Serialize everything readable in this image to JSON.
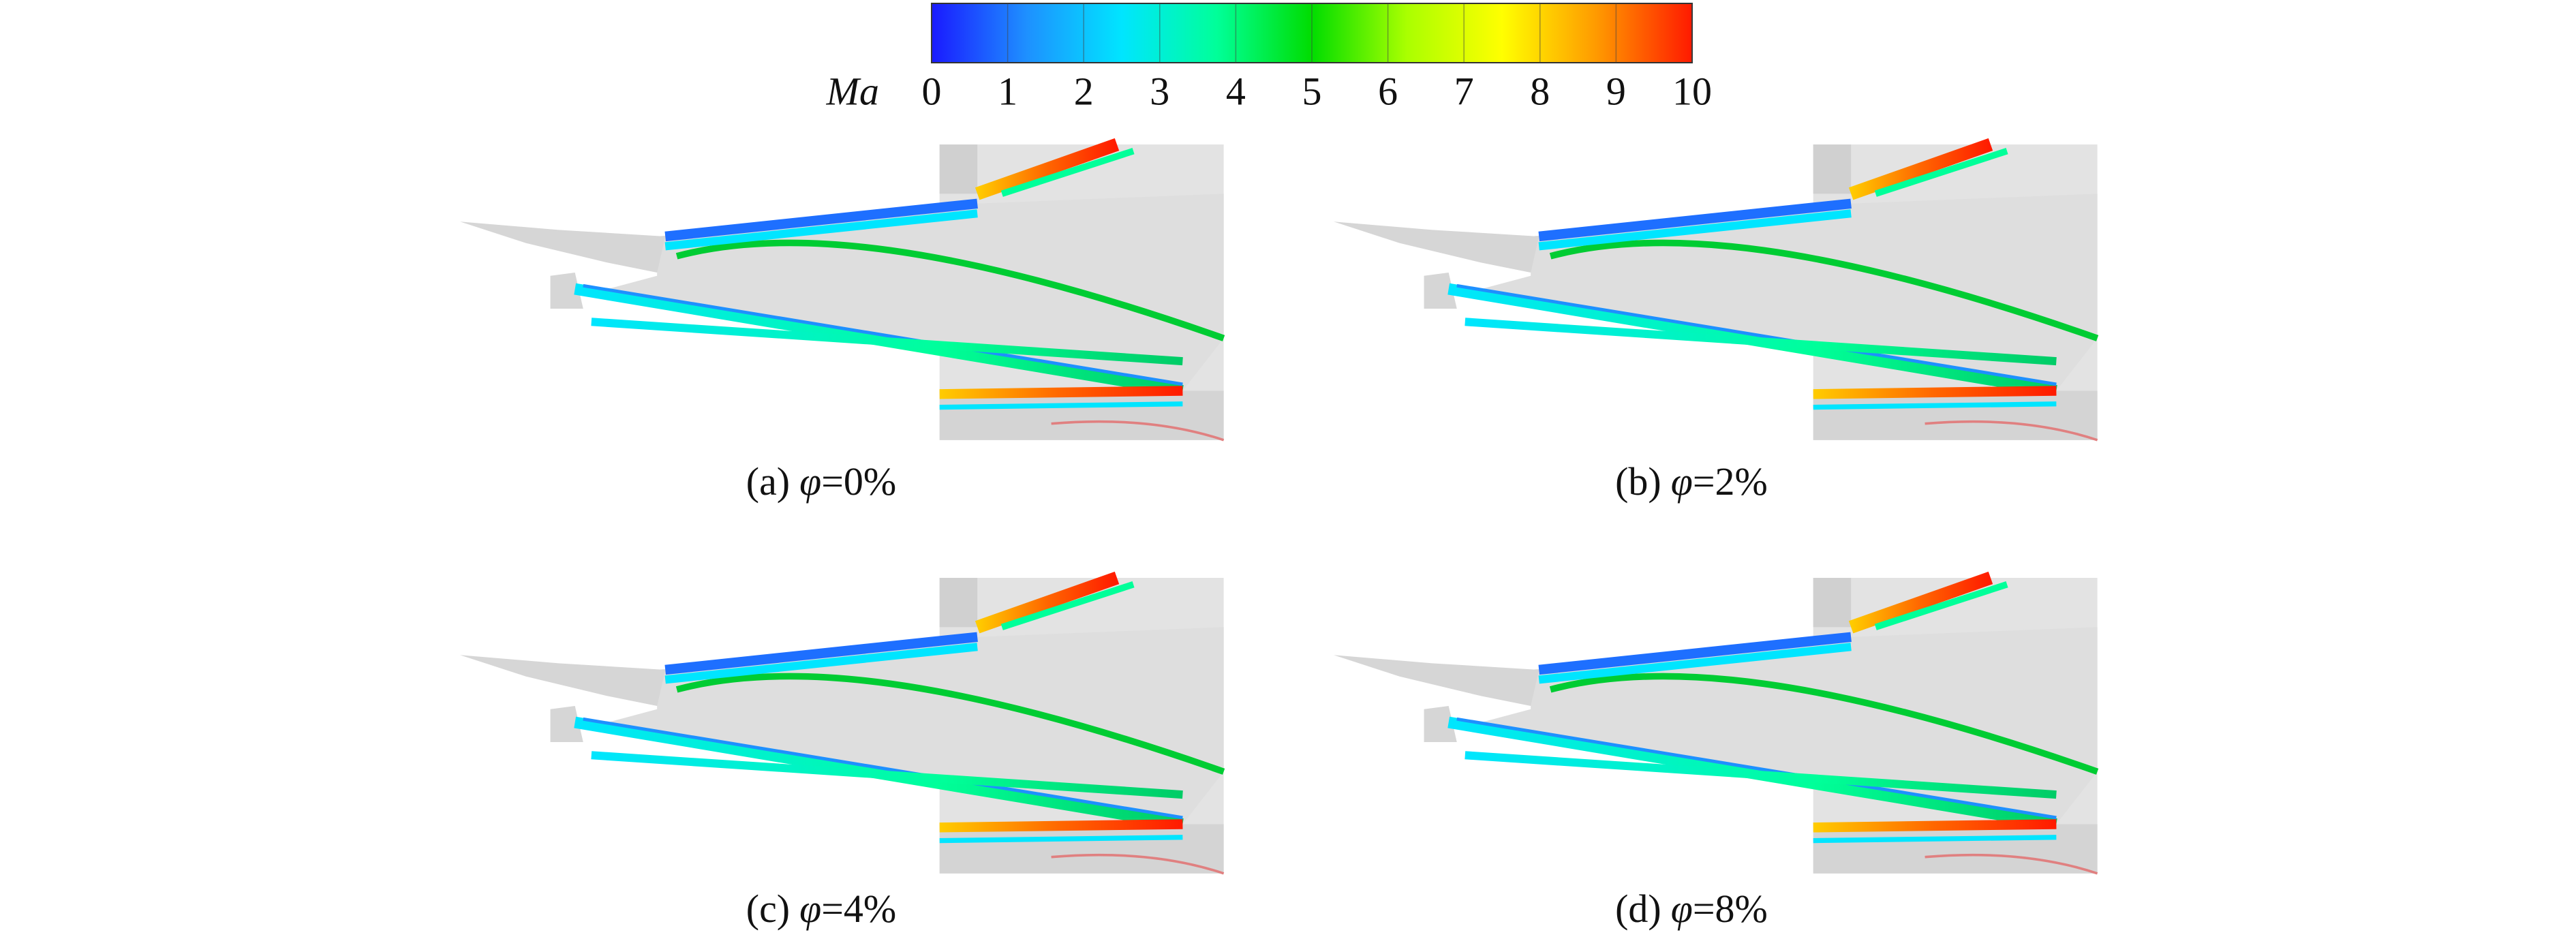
{
  "colorbar": {
    "label": "Ma",
    "ticks": [
      0,
      1,
      2,
      3,
      4,
      5,
      6,
      7,
      8,
      9,
      10
    ],
    "range": [
      0,
      10
    ],
    "colors": [
      "#1a1aff",
      "#1e90ff",
      "#00e5ff",
      "#00ff99",
      "#00dd00",
      "#aaff00",
      "#ffff00",
      "#ff9900",
      "#ff1a00"
    ]
  },
  "panels": [
    {
      "label": "(a)",
      "symbol": "φ",
      "text": "=0%"
    },
    {
      "label": "(b)",
      "symbol": "φ",
      "text": "=2%"
    },
    {
      "label": "(c)",
      "symbol": "φ",
      "text": "=4%"
    },
    {
      "label": "(d)",
      "symbol": "φ",
      "text": "=8%"
    }
  ]
}
